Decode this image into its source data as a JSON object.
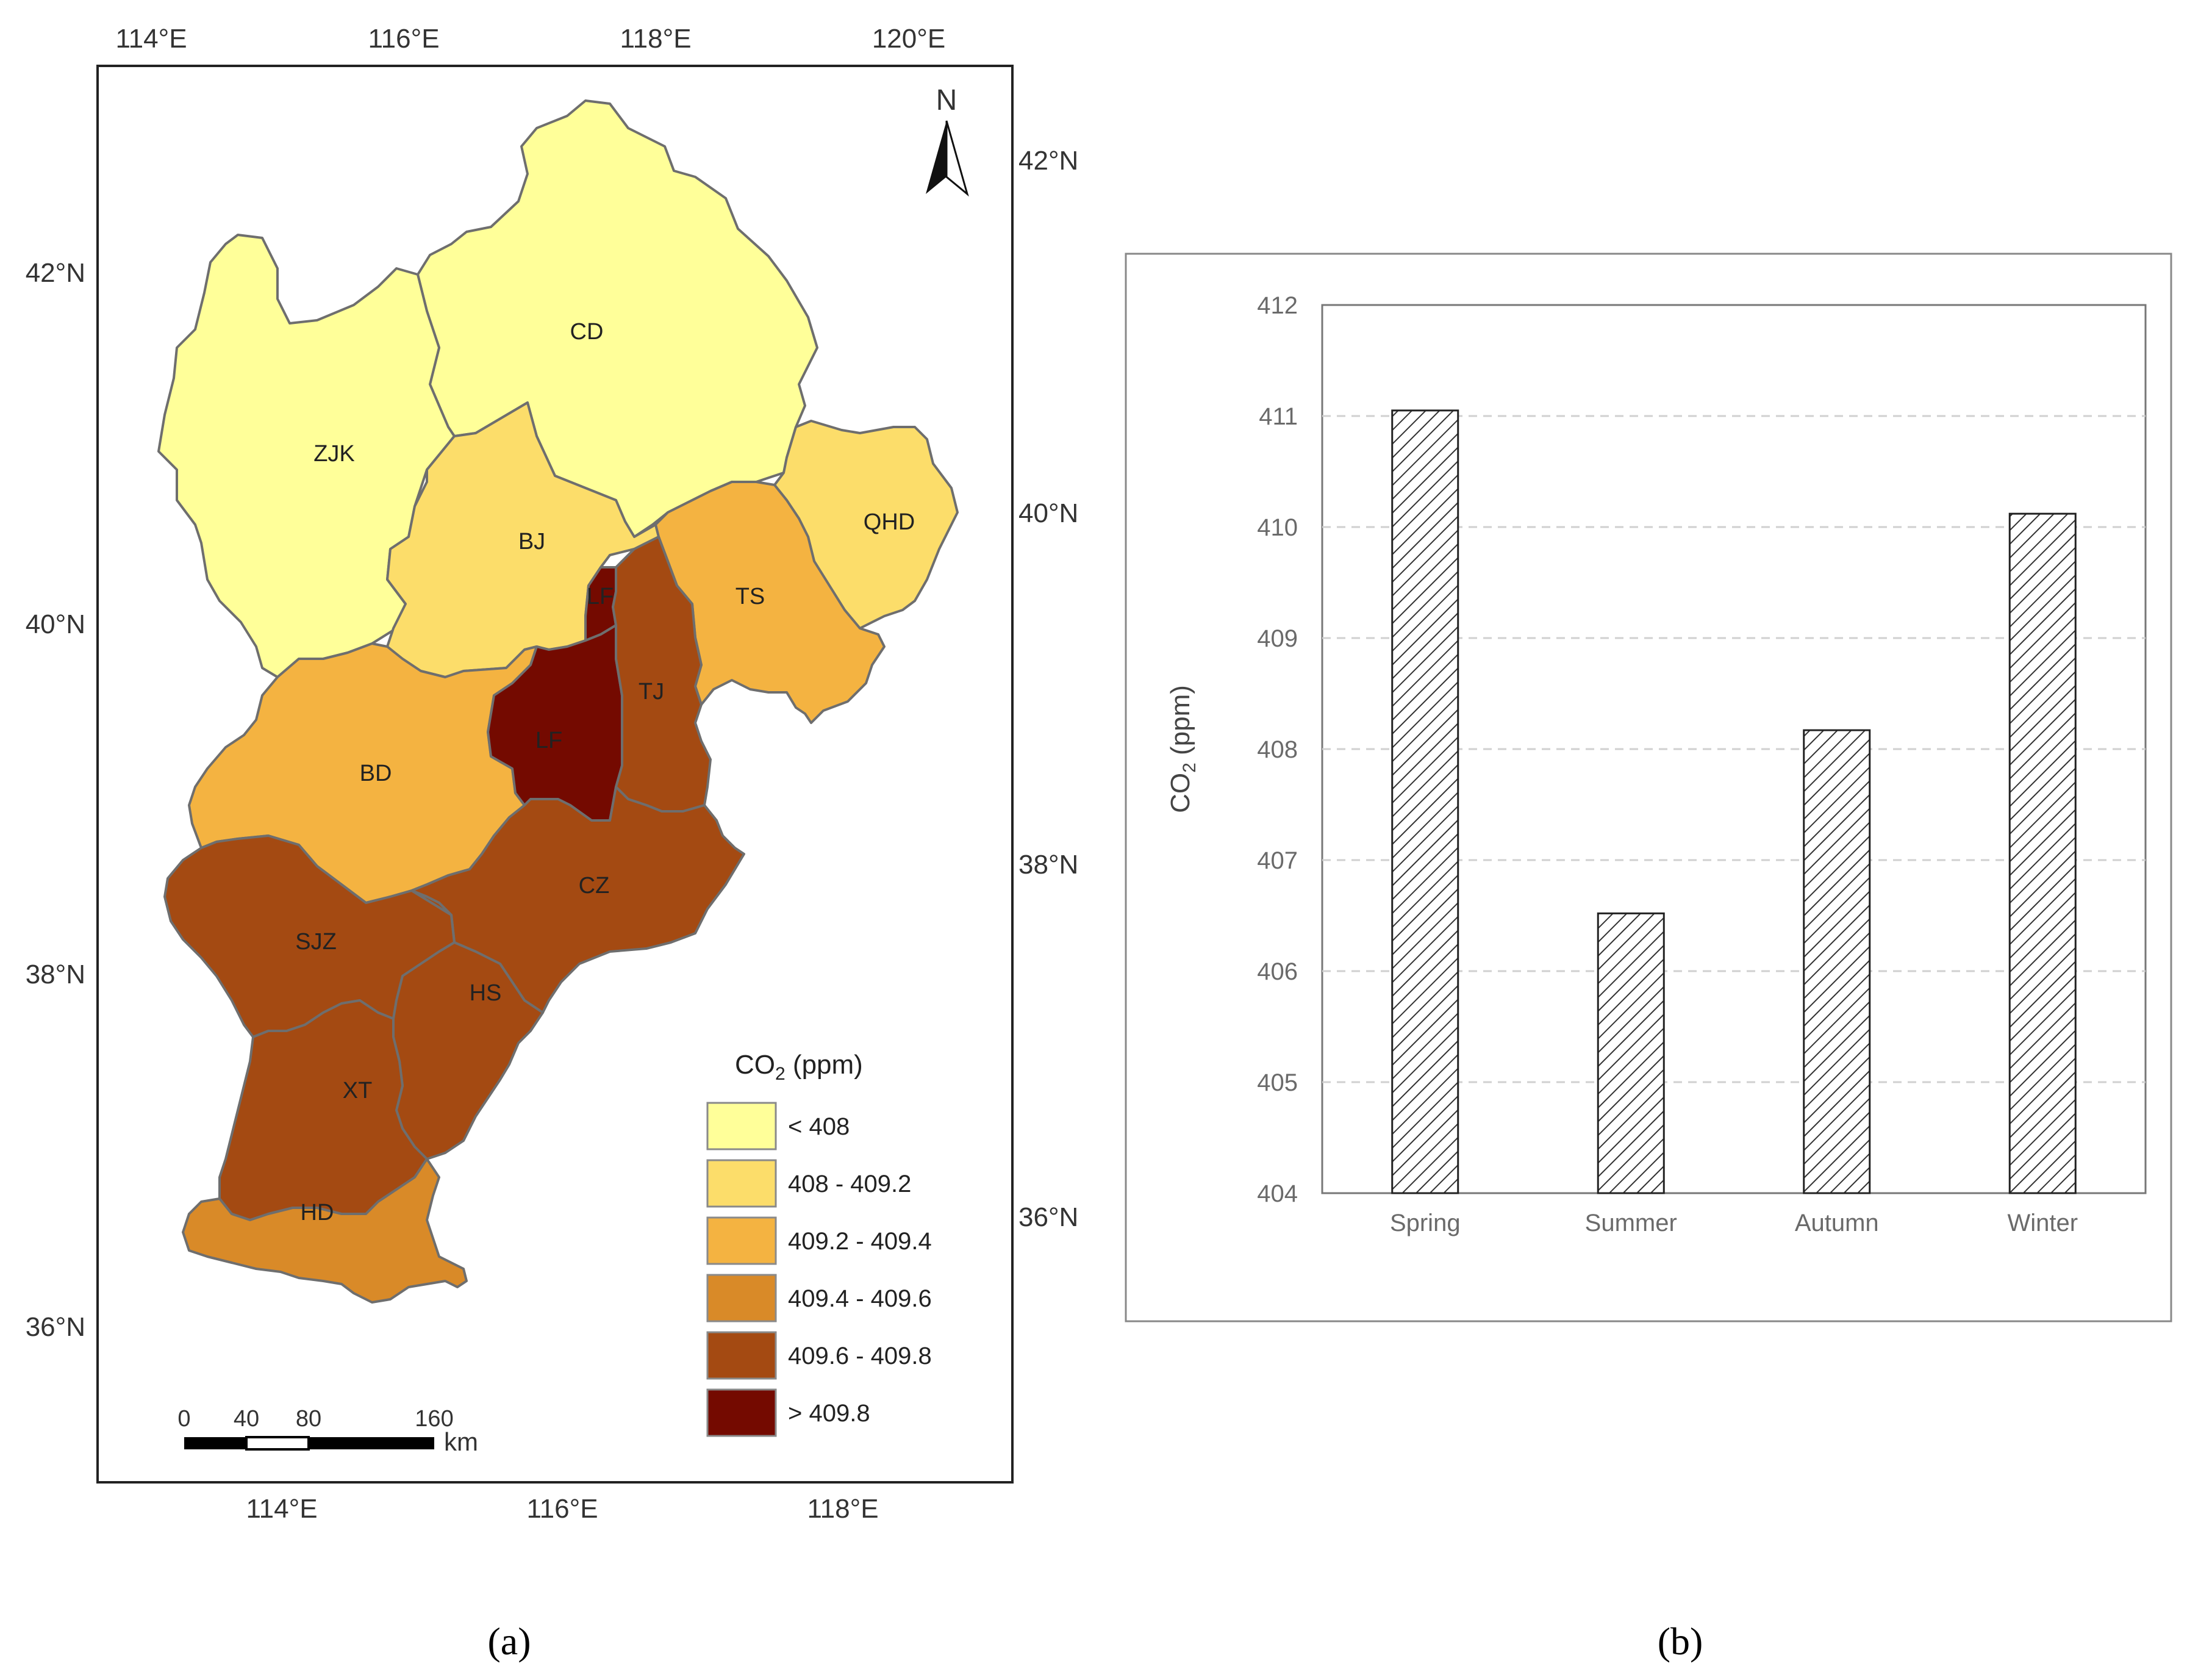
{
  "map": {
    "top_lon_ticks": [
      "114°E",
      "116°E",
      "118°E",
      "120°E"
    ],
    "bottom_lon_ticks": [
      "114°E",
      "116°E",
      "118°E"
    ],
    "left_lat_ticks": [
      "42°N",
      "40°N",
      "38°N",
      "36°N"
    ],
    "right_lat_ticks": [
      "42°N",
      "40°N",
      "38°N",
      "36°N"
    ],
    "north_label": "N",
    "regions": {
      "CD": {
        "label": "CD",
        "class": "< 408"
      },
      "ZJK": {
        "label": "ZJK",
        "class": "< 408"
      },
      "QHD": {
        "label": "QHD",
        "class": "408 - 409.2"
      },
      "BJ": {
        "label": "BJ",
        "class": "408 - 409.2"
      },
      "TS": {
        "label": "TS",
        "class": "409.2 - 409.4"
      },
      "BD": {
        "label": "BD",
        "class": "409.2 - 409.4"
      },
      "LF_north": {
        "label": "LF",
        "class": "> 409.8"
      },
      "LF_south": {
        "label": "LF",
        "class": "> 409.8"
      },
      "TJ": {
        "label": "TJ",
        "class": "409.6 - 409.8"
      },
      "CZ": {
        "label": "CZ",
        "class": "409.6 - 409.8"
      },
      "SJZ": {
        "label": "SJZ",
        "class": "409.6 - 409.8"
      },
      "HS": {
        "label": "HS",
        "class": "409.6 - 409.8"
      },
      "XT": {
        "label": "XT",
        "class": "409.6 - 409.8"
      },
      "HD": {
        "label": "HD",
        "class": "409.4 - 409.6"
      }
    },
    "legend": {
      "title_main": "CO",
      "title_sub": "2",
      "title_unit": " (ppm)",
      "items": [
        {
          "label": "< 408",
          "color": "#FFFF99"
        },
        {
          "label": "408 - 409.2",
          "color": "#FCDD6A"
        },
        {
          "label": "409.2 - 409.4",
          "color": "#F4B341"
        },
        {
          "label": "409.4 - 409.6",
          "color": "#D98A28"
        },
        {
          "label": "409.6 - 409.8",
          "color": "#A44A12"
        },
        {
          "label": "> 409.8",
          "color": "#740A00"
        }
      ]
    },
    "scale_bar": {
      "ticks": [
        "0",
        "40",
        "80",
        "160"
      ],
      "unit": "km"
    },
    "caption": "(a)"
  },
  "chart_data": {
    "type": "bar",
    "categories": [
      "Spring",
      "Summer",
      "Autumn",
      "Winter"
    ],
    "values": [
      411.05,
      406.52,
      408.17,
      410.12
    ],
    "ylabel_main": "CO",
    "ylabel_sub": "2",
    "ylabel_unit": " (ppm)",
    "ylim": [
      404,
      412
    ],
    "yticks": [
      404,
      405,
      406,
      407,
      408,
      409,
      410,
      411,
      412
    ],
    "grid": "dashed-horizontal",
    "bar_style": "diagonal-hatch",
    "caption": "(b)"
  }
}
